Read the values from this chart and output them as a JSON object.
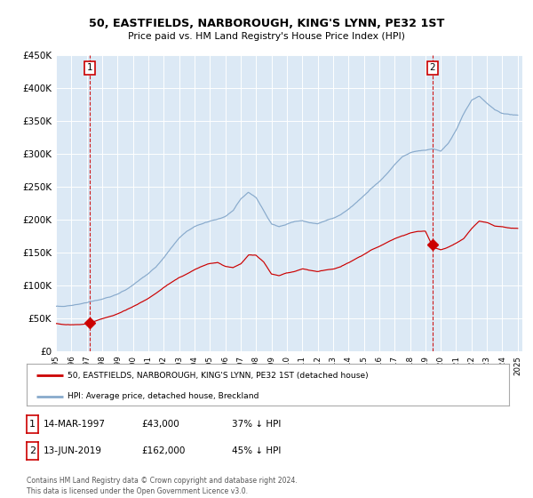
{
  "title": "50, EASTFIELDS, NARBOROUGH, KING'S LYNN, PE32 1ST",
  "subtitle": "Price paid vs. HM Land Registry's House Price Index (HPI)",
  "legend_label_red": "50, EASTFIELDS, NARBOROUGH, KING'S LYNN, PE32 1ST (detached house)",
  "legend_label_blue": "HPI: Average price, detached house, Breckland",
  "sale1_date": "14-MAR-1997",
  "sale1_price": "£43,000",
  "sale1_pct": "37% ↓ HPI",
  "sale2_date": "13-JUN-2019",
  "sale2_price": "£162,000",
  "sale2_pct": "45% ↓ HPI",
  "footer": "Contains HM Land Registry data © Crown copyright and database right 2024.\nThis data is licensed under the Open Government Licence v3.0.",
  "ylim": [
    0,
    450000
  ],
  "red_color": "#cc0000",
  "blue_color": "#88aacc",
  "sale1_year": 1997.2,
  "sale2_year": 2019.45,
  "sale1_value": 43000,
  "sale2_value": 162000,
  "plot_bg": "#dce9f5",
  "grid_color": "#ffffff",
  "blue_hpi_points": [
    [
      1995.0,
      68000
    ],
    [
      1995.5,
      68500
    ],
    [
      1996.0,
      70000
    ],
    [
      1996.5,
      72000
    ],
    [
      1997.0,
      74000
    ],
    [
      1997.5,
      76500
    ],
    [
      1998.0,
      79000
    ],
    [
      1998.5,
      82000
    ],
    [
      1999.0,
      86000
    ],
    [
      1999.5,
      92000
    ],
    [
      2000.0,
      100000
    ],
    [
      2000.5,
      110000
    ],
    [
      2001.0,
      118000
    ],
    [
      2001.5,
      128000
    ],
    [
      2002.0,
      142000
    ],
    [
      2002.5,
      158000
    ],
    [
      2003.0,
      172000
    ],
    [
      2003.5,
      182000
    ],
    [
      2004.0,
      188000
    ],
    [
      2004.5,
      192000
    ],
    [
      2005.0,
      196000
    ],
    [
      2005.5,
      198000
    ],
    [
      2006.0,
      202000
    ],
    [
      2006.5,
      210000
    ],
    [
      2007.0,
      228000
    ],
    [
      2007.5,
      238000
    ],
    [
      2008.0,
      230000
    ],
    [
      2008.5,
      210000
    ],
    [
      2009.0,
      190000
    ],
    [
      2009.5,
      185000
    ],
    [
      2010.0,
      188000
    ],
    [
      2010.5,
      192000
    ],
    [
      2011.0,
      194000
    ],
    [
      2011.5,
      190000
    ],
    [
      2012.0,
      188000
    ],
    [
      2012.5,
      192000
    ],
    [
      2013.0,
      196000
    ],
    [
      2013.5,
      202000
    ],
    [
      2014.0,
      210000
    ],
    [
      2014.5,
      220000
    ],
    [
      2015.0,
      230000
    ],
    [
      2015.5,
      242000
    ],
    [
      2016.0,
      252000
    ],
    [
      2016.5,
      264000
    ],
    [
      2017.0,
      278000
    ],
    [
      2017.5,
      290000
    ],
    [
      2018.0,
      296000
    ],
    [
      2018.5,
      298000
    ],
    [
      2019.0,
      300000
    ],
    [
      2019.5,
      302000
    ],
    [
      2020.0,
      298000
    ],
    [
      2020.5,
      310000
    ],
    [
      2021.0,
      330000
    ],
    [
      2021.5,
      355000
    ],
    [
      2022.0,
      375000
    ],
    [
      2022.5,
      380000
    ],
    [
      2023.0,
      370000
    ],
    [
      2023.5,
      360000
    ],
    [
      2024.0,
      355000
    ],
    [
      2024.5,
      353000
    ],
    [
      2025.0,
      352000
    ]
  ],
  "red_hpi_points": [
    [
      1995.0,
      42000
    ],
    [
      1995.5,
      41000
    ],
    [
      1996.0,
      40500
    ],
    [
      1996.5,
      41000
    ],
    [
      1997.0,
      43000
    ],
    [
      1997.5,
      46000
    ],
    [
      1998.0,
      50000
    ],
    [
      1998.5,
      53000
    ],
    [
      1999.0,
      57000
    ],
    [
      1999.5,
      62000
    ],
    [
      2000.0,
      68000
    ],
    [
      2000.5,
      74000
    ],
    [
      2001.0,
      80000
    ],
    [
      2001.5,
      88000
    ],
    [
      2002.0,
      96000
    ],
    [
      2002.5,
      104000
    ],
    [
      2003.0,
      112000
    ],
    [
      2003.5,
      118000
    ],
    [
      2004.0,
      125000
    ],
    [
      2004.5,
      130000
    ],
    [
      2005.0,
      134000
    ],
    [
      2005.5,
      136000
    ],
    [
      2006.0,
      130000
    ],
    [
      2006.5,
      128000
    ],
    [
      2007.0,
      134000
    ],
    [
      2007.5,
      148000
    ],
    [
      2008.0,
      148000
    ],
    [
      2008.5,
      138000
    ],
    [
      2009.0,
      120000
    ],
    [
      2009.5,
      118000
    ],
    [
      2010.0,
      122000
    ],
    [
      2010.5,
      124000
    ],
    [
      2011.0,
      128000
    ],
    [
      2011.5,
      126000
    ],
    [
      2012.0,
      124000
    ],
    [
      2012.5,
      126000
    ],
    [
      2013.0,
      128000
    ],
    [
      2013.5,
      132000
    ],
    [
      2014.0,
      138000
    ],
    [
      2014.5,
      144000
    ],
    [
      2015.0,
      150000
    ],
    [
      2015.5,
      157000
    ],
    [
      2016.0,
      162000
    ],
    [
      2016.5,
      168000
    ],
    [
      2017.0,
      174000
    ],
    [
      2017.5,
      178000
    ],
    [
      2018.0,
      182000
    ],
    [
      2018.5,
      185000
    ],
    [
      2019.0,
      186000
    ],
    [
      2019.5,
      162000
    ],
    [
      2020.0,
      158000
    ],
    [
      2020.5,
      162000
    ],
    [
      2021.0,
      168000
    ],
    [
      2021.5,
      175000
    ],
    [
      2022.0,
      190000
    ],
    [
      2022.5,
      202000
    ],
    [
      2023.0,
      200000
    ],
    [
      2023.5,
      195000
    ],
    [
      2024.0,
      195000
    ],
    [
      2024.5,
      193000
    ],
    [
      2025.0,
      192000
    ]
  ]
}
